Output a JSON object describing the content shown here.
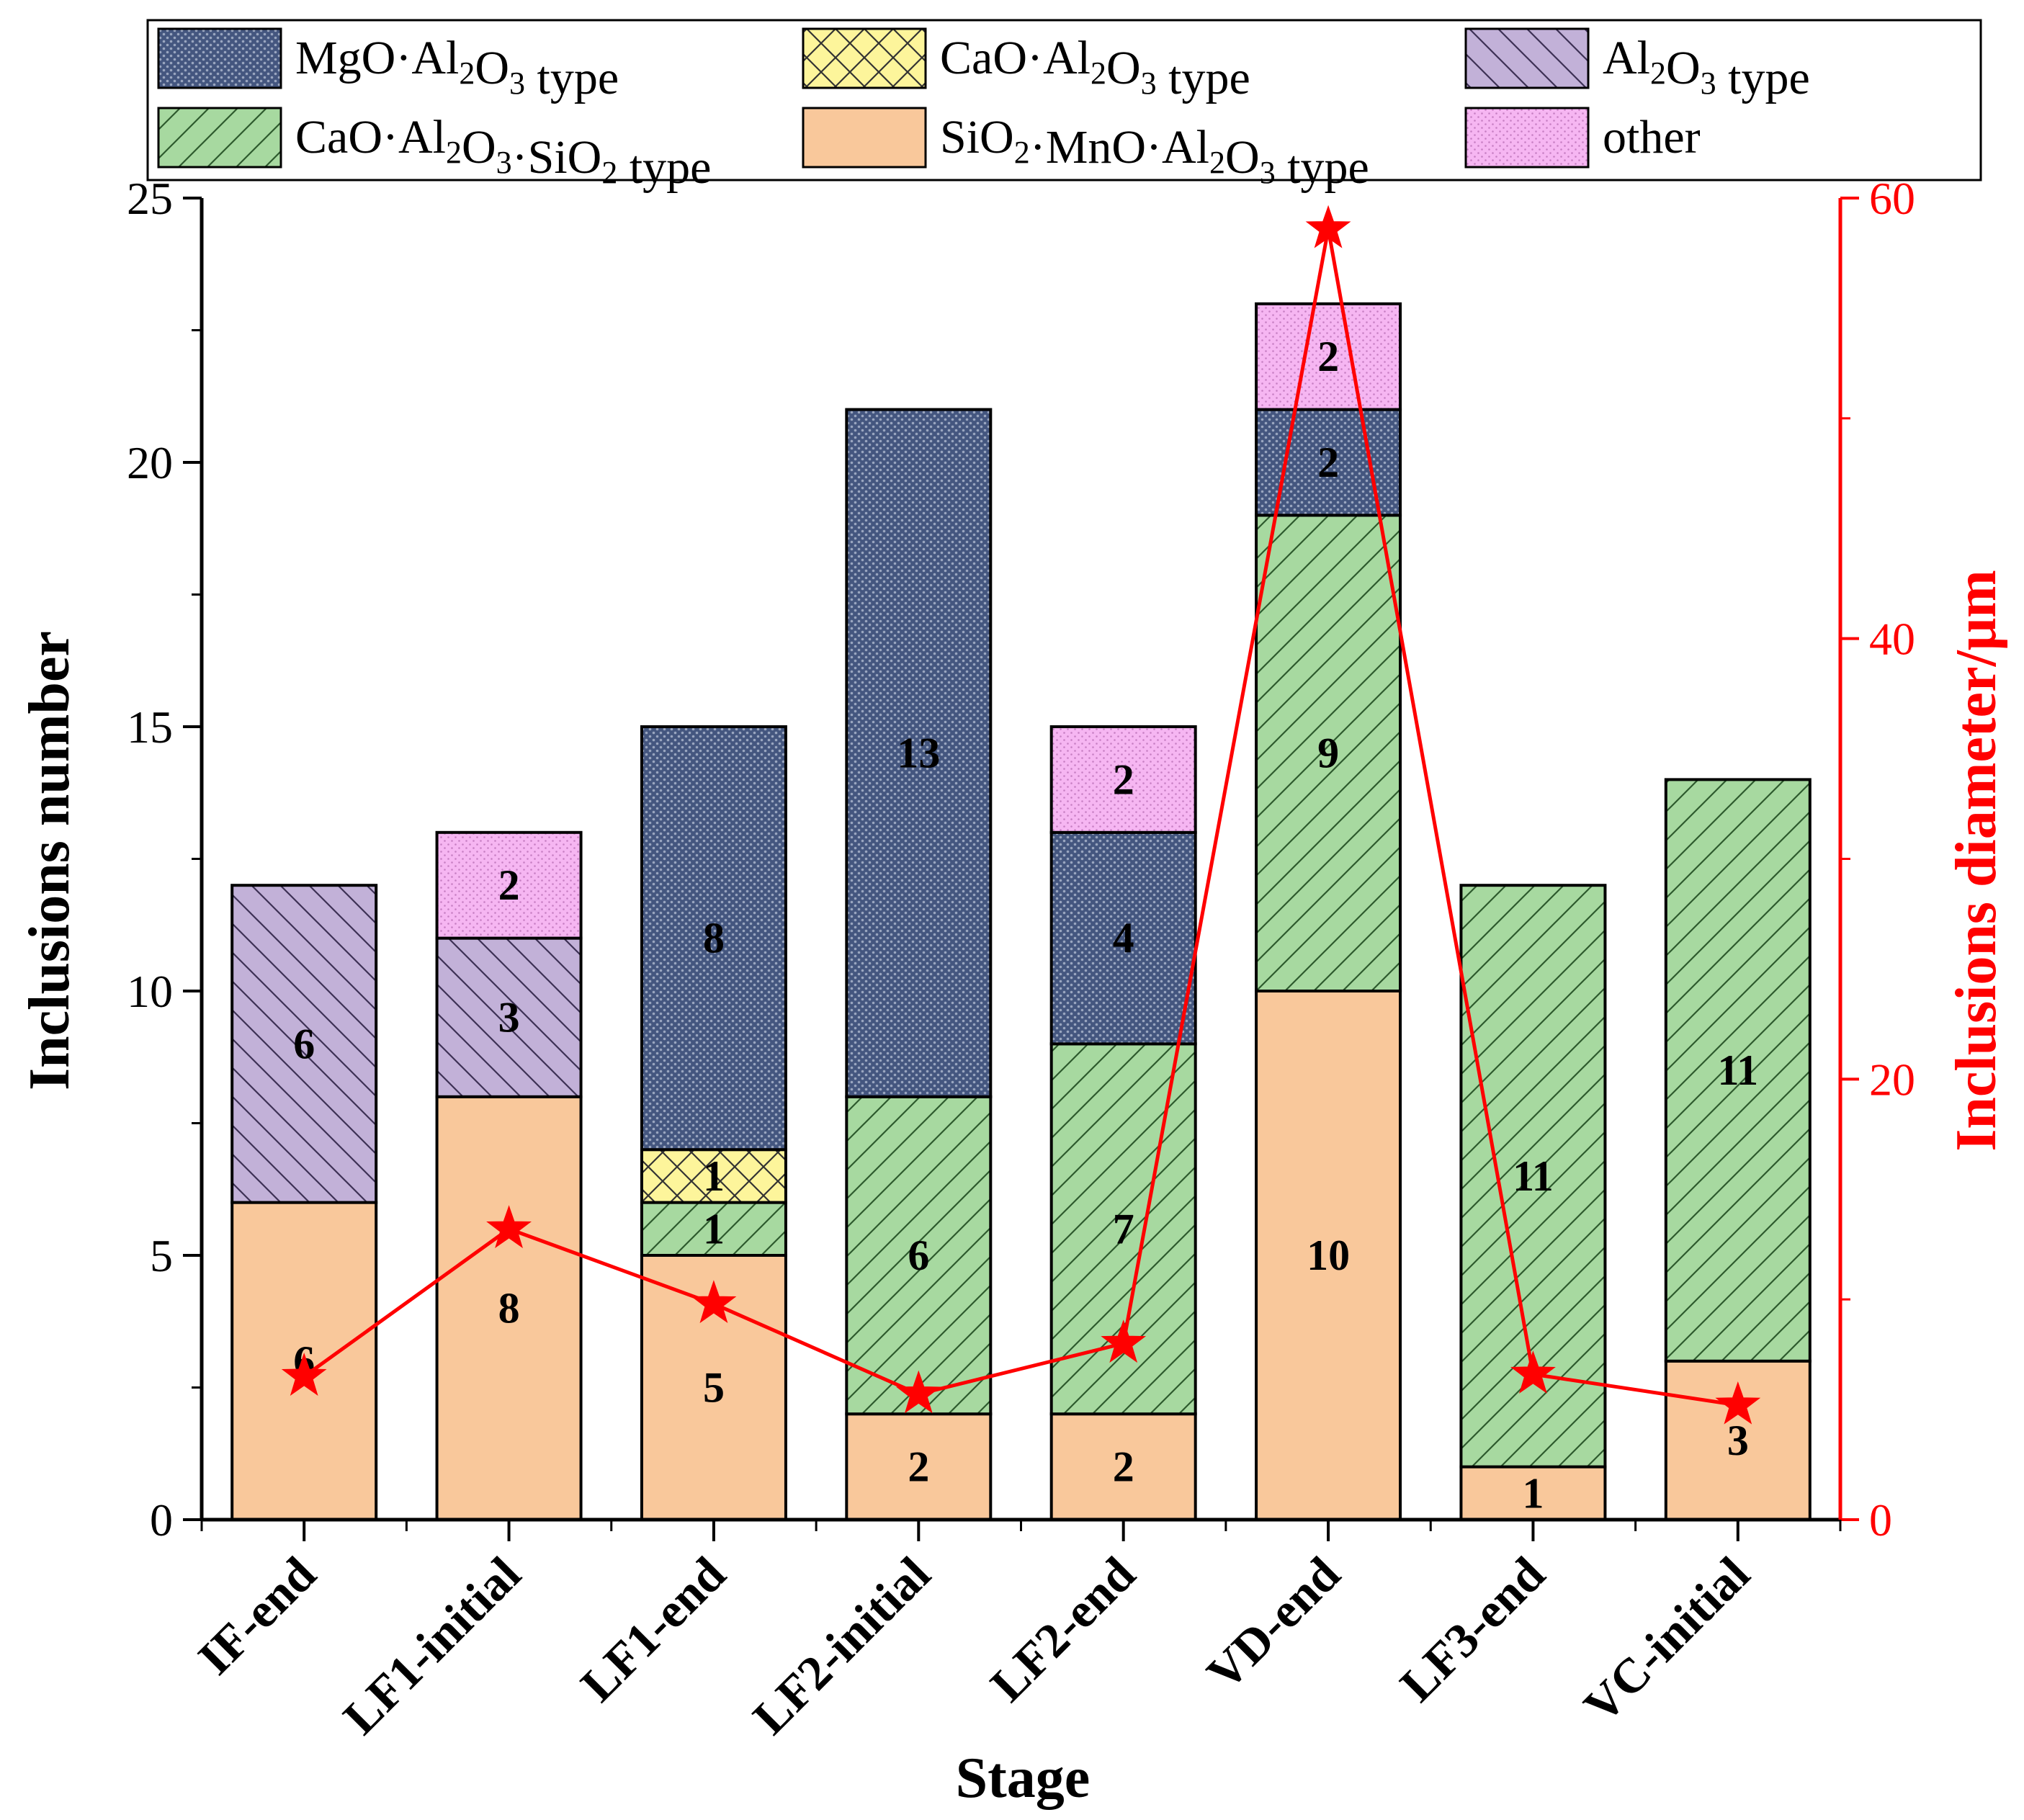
{
  "chart_data": {
    "type": "bar",
    "stacked": true,
    "xlabel": "Stage",
    "ylabel": "Inclusions number",
    "y2label": "Inclusions diameter/μm",
    "ylim": [
      0,
      25
    ],
    "y2lim": [
      0,
      60
    ],
    "yticks": [
      "0",
      "5",
      "10",
      "15",
      "20",
      "25"
    ],
    "y2ticks": [
      "0",
      "20",
      "40",
      "60"
    ],
    "categories": [
      "IF-end",
      "LF1-initial",
      "LF1-end",
      "LF2-initial",
      "LF2-end",
      "VD-end",
      "LF3-end",
      "VC-initial"
    ],
    "series": [
      {
        "key": "smn",
        "name": "SiO₂·MnO·Al₂O₃ type",
        "color": "#f9c89b",
        "pattern": "none",
        "values": [
          6,
          8,
          5,
          2,
          2,
          10,
          1,
          3
        ]
      },
      {
        "key": "cas",
        "name": "CaO·Al₂O₃·SiO₂ type",
        "color": "#a7d9a0",
        "pattern": "diag-right",
        "values": [
          0,
          0,
          1,
          6,
          7,
          9,
          11,
          11
        ]
      },
      {
        "key": "caa",
        "name": "CaO·Al₂O₃ type",
        "color": "#fdf59b",
        "pattern": "cross",
        "values": [
          0,
          0,
          1,
          0,
          0,
          0,
          0,
          0
        ]
      },
      {
        "key": "mga",
        "name": "MgO·Al₂O₃ type",
        "color": "#44567f",
        "pattern": "dots",
        "values": [
          0,
          0,
          8,
          13,
          4,
          2,
          0,
          0
        ]
      },
      {
        "key": "al",
        "name": "Al₂O₃ type",
        "color": "#c2b1d8",
        "pattern": "diag-left",
        "values": [
          6,
          3,
          0,
          0,
          0,
          0,
          0,
          0
        ]
      },
      {
        "key": "oth",
        "name": "other",
        "color": "#f6b6f2",
        "pattern": "fine-dots",
        "values": [
          0,
          2,
          0,
          0,
          2,
          2,
          0,
          0
        ]
      }
    ],
    "line_series": {
      "name": "Inclusions diameter",
      "axis": "y2",
      "color": "#ff0000",
      "marker": "star",
      "values": [
        6.5,
        13.2,
        9.8,
        5.7,
        8.0,
        58.6,
        6.6,
        5.2
      ]
    },
    "legend": {
      "position": "top",
      "rows": [
        [
          {
            "key": "mga",
            "label_main": "MgO·Al",
            "sub1": "2",
            "mid": "O",
            "sub2": "3",
            "tail": " type",
            "pre": ""
          },
          {
            "key": "caa",
            "label_main": "CaO·Al",
            "sub1": "2",
            "mid": "O",
            "sub2": "3",
            "tail": " type",
            "pre": ""
          },
          {
            "key": "al",
            "label_main": "Al",
            "sub1": "2",
            "mid": "O",
            "sub2": "3",
            "tail": " type",
            "pre": ""
          }
        ],
        [
          {
            "key": "cas",
            "label_main": "CaO·Al",
            "sub1": "2",
            "mid": "O",
            "sub2": "3",
            "tail": "·SiO",
            "sub3": "2",
            "tail2": " type"
          },
          {
            "key": "smn",
            "label_main": "SiO",
            "sub1": "2",
            "mid": "·MnO·Al",
            "sub2": "2",
            "tail": "O",
            "sub3": "3",
            "tail2": " type"
          },
          {
            "key": "oth",
            "label_main": "other"
          }
        ]
      ]
    }
  }
}
